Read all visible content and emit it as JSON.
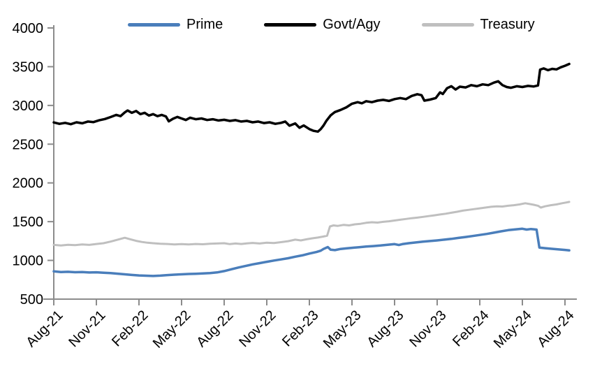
{
  "chart_data": {
    "type": "line",
    "title": "",
    "xlabel": "",
    "ylabel": "",
    "grid": false,
    "legend_position": "top",
    "axis_color": "#8c8c8c",
    "tick_label_color": "#000000",
    "ylim": [
      500,
      4000
    ],
    "y_ticks": [
      500,
      1000,
      1500,
      2000,
      2500,
      3000,
      3500,
      4000
    ],
    "x_tick_labels": [
      "Aug-21",
      "Nov-21",
      "Feb-22",
      "May-22",
      "Aug-22",
      "Nov-22",
      "Feb-23",
      "May-23",
      "Aug-23",
      "Nov-23",
      "Feb-24",
      "May-24",
      "Aug-24"
    ],
    "x_months_per_tick": 3,
    "x_span_months": 36.3,
    "series": [
      {
        "name": "Prime",
        "color": "#4a7ebb",
        "width": 3.5,
        "points": [
          [
            0,
            858
          ],
          [
            0.5,
            850
          ],
          [
            1,
            853
          ],
          [
            1.5,
            847
          ],
          [
            2,
            850
          ],
          [
            2.5,
            844
          ],
          [
            3,
            846
          ],
          [
            3.5,
            840
          ],
          [
            4,
            836
          ],
          [
            4.5,
            828
          ],
          [
            5,
            820
          ],
          [
            5.5,
            812
          ],
          [
            6,
            806
          ],
          [
            6.5,
            802
          ],
          [
            7,
            799
          ],
          [
            7.5,
            803
          ],
          [
            8,
            810
          ],
          [
            8.5,
            816
          ],
          [
            9,
            820
          ],
          [
            9.5,
            825
          ],
          [
            10,
            827
          ],
          [
            10.5,
            831
          ],
          [
            11,
            836
          ],
          [
            11.5,
            845
          ],
          [
            12,
            862
          ],
          [
            12.5,
            885
          ],
          [
            13,
            908
          ],
          [
            13.5,
            928
          ],
          [
            14,
            948
          ],
          [
            14.5,
            965
          ],
          [
            15,
            982
          ],
          [
            15.5,
            998
          ],
          [
            16,
            1012
          ],
          [
            16.5,
            1028
          ],
          [
            17,
            1048
          ],
          [
            17.5,
            1065
          ],
          [
            18,
            1088
          ],
          [
            18.5,
            1108
          ],
          [
            18.8,
            1125
          ],
          [
            19,
            1148
          ],
          [
            19.3,
            1172
          ],
          [
            19.5,
            1138
          ],
          [
            19.8,
            1132
          ],
          [
            20.2,
            1148
          ],
          [
            20.6,
            1155
          ],
          [
            21,
            1162
          ],
          [
            21.5,
            1170
          ],
          [
            22,
            1178
          ],
          [
            22.5,
            1185
          ],
          [
            23,
            1192
          ],
          [
            23.5,
            1202
          ],
          [
            24,
            1210
          ],
          [
            24.3,
            1198
          ],
          [
            24.6,
            1212
          ],
          [
            25,
            1222
          ],
          [
            25.5,
            1232
          ],
          [
            26,
            1242
          ],
          [
            26.5,
            1250
          ],
          [
            27,
            1258
          ],
          [
            27.5,
            1268
          ],
          [
            28,
            1278
          ],
          [
            28.5,
            1290
          ],
          [
            29,
            1302
          ],
          [
            29.5,
            1315
          ],
          [
            30,
            1328
          ],
          [
            30.5,
            1342
          ],
          [
            31,
            1358
          ],
          [
            31.5,
            1375
          ],
          [
            32,
            1390
          ],
          [
            32.5,
            1400
          ],
          [
            33,
            1408
          ],
          [
            33.3,
            1398
          ],
          [
            33.6,
            1405
          ],
          [
            34,
            1398
          ],
          [
            34.2,
            1165
          ],
          [
            34.6,
            1158
          ],
          [
            35,
            1150
          ],
          [
            35.5,
            1142
          ],
          [
            36,
            1135
          ],
          [
            36.3,
            1130
          ]
        ]
      },
      {
        "name": "Govt/Agy",
        "color": "#000000",
        "width": 3.5,
        "points": [
          [
            0,
            2780
          ],
          [
            0.4,
            2762
          ],
          [
            0.8,
            2775
          ],
          [
            1.2,
            2758
          ],
          [
            1.6,
            2782
          ],
          [
            2,
            2770
          ],
          [
            2.4,
            2792
          ],
          [
            2.8,
            2785
          ],
          [
            3.2,
            2808
          ],
          [
            3.6,
            2825
          ],
          [
            4,
            2850
          ],
          [
            4.4,
            2878
          ],
          [
            4.7,
            2862
          ],
          [
            5,
            2910
          ],
          [
            5.2,
            2935
          ],
          [
            5.5,
            2905
          ],
          [
            5.8,
            2928
          ],
          [
            6.1,
            2888
          ],
          [
            6.4,
            2905
          ],
          [
            6.7,
            2870
          ],
          [
            7,
            2888
          ],
          [
            7.3,
            2862
          ],
          [
            7.6,
            2878
          ],
          [
            7.9,
            2858
          ],
          [
            8.1,
            2795
          ],
          [
            8.4,
            2828
          ],
          [
            8.7,
            2852
          ],
          [
            9,
            2832
          ],
          [
            9.3,
            2812
          ],
          [
            9.6,
            2842
          ],
          [
            10,
            2822
          ],
          [
            10.4,
            2832
          ],
          [
            10.8,
            2812
          ],
          [
            11.2,
            2822
          ],
          [
            11.6,
            2806
          ],
          [
            12,
            2815
          ],
          [
            12.4,
            2800
          ],
          [
            12.8,
            2810
          ],
          [
            13.2,
            2792
          ],
          [
            13.6,
            2800
          ],
          [
            14,
            2782
          ],
          [
            14.4,
            2792
          ],
          [
            14.8,
            2772
          ],
          [
            15.2,
            2782
          ],
          [
            15.6,
            2762
          ],
          [
            16,
            2775
          ],
          [
            16.3,
            2792
          ],
          [
            16.6,
            2738
          ],
          [
            17,
            2768
          ],
          [
            17.3,
            2712
          ],
          [
            17.6,
            2742
          ],
          [
            18,
            2695
          ],
          [
            18.3,
            2672
          ],
          [
            18.6,
            2662
          ],
          [
            18.8,
            2695
          ],
          [
            19,
            2742
          ],
          [
            19.2,
            2802
          ],
          [
            19.5,
            2872
          ],
          [
            19.8,
            2915
          ],
          [
            20.2,
            2942
          ],
          [
            20.6,
            2975
          ],
          [
            21,
            3022
          ],
          [
            21.4,
            3042
          ],
          [
            21.7,
            3028
          ],
          [
            22,
            3055
          ],
          [
            22.4,
            3042
          ],
          [
            22.8,
            3062
          ],
          [
            23.2,
            3072
          ],
          [
            23.6,
            3058
          ],
          [
            24,
            3082
          ],
          [
            24.4,
            3095
          ],
          [
            24.8,
            3082
          ],
          [
            25.2,
            3122
          ],
          [
            25.6,
            3145
          ],
          [
            25.9,
            3132
          ],
          [
            26.1,
            3062
          ],
          [
            26.5,
            3075
          ],
          [
            26.9,
            3095
          ],
          [
            27.2,
            3168
          ],
          [
            27.4,
            3148
          ],
          [
            27.7,
            3222
          ],
          [
            28,
            3248
          ],
          [
            28.3,
            3205
          ],
          [
            28.6,
            3242
          ],
          [
            29,
            3232
          ],
          [
            29.4,
            3262
          ],
          [
            29.8,
            3248
          ],
          [
            30.2,
            3272
          ],
          [
            30.6,
            3262
          ],
          [
            31,
            3295
          ],
          [
            31.3,
            3312
          ],
          [
            31.6,
            3262
          ],
          [
            31.9,
            3238
          ],
          [
            32.2,
            3228
          ],
          [
            32.6,
            3248
          ],
          [
            33,
            3238
          ],
          [
            33.4,
            3252
          ],
          [
            33.8,
            3245
          ],
          [
            34.1,
            3258
          ],
          [
            34.25,
            3462
          ],
          [
            34.5,
            3478
          ],
          [
            34.8,
            3455
          ],
          [
            35.1,
            3472
          ],
          [
            35.4,
            3465
          ],
          [
            35.7,
            3492
          ],
          [
            36,
            3512
          ],
          [
            36.3,
            3535
          ]
        ]
      },
      {
        "name": "Treasury",
        "color": "#bfbfbf",
        "width": 3,
        "points": [
          [
            0,
            1200
          ],
          [
            0.5,
            1192
          ],
          [
            1,
            1202
          ],
          [
            1.5,
            1196
          ],
          [
            2,
            1205
          ],
          [
            2.5,
            1200
          ],
          [
            3,
            1212
          ],
          [
            3.5,
            1222
          ],
          [
            4,
            1242
          ],
          [
            4.5,
            1268
          ],
          [
            5,
            1292
          ],
          [
            5.4,
            1272
          ],
          [
            5.8,
            1252
          ],
          [
            6.2,
            1238
          ],
          [
            6.6,
            1228
          ],
          [
            7,
            1222
          ],
          [
            7.5,
            1215
          ],
          [
            8,
            1212
          ],
          [
            8.5,
            1206
          ],
          [
            9,
            1210
          ],
          [
            9.5,
            1205
          ],
          [
            10,
            1212
          ],
          [
            10.5,
            1208
          ],
          [
            11,
            1214
          ],
          [
            11.5,
            1218
          ],
          [
            12,
            1222
          ],
          [
            12.4,
            1210
          ],
          [
            12.8,
            1218
          ],
          [
            13.2,
            1212
          ],
          [
            13.6,
            1220
          ],
          [
            14,
            1225
          ],
          [
            14.5,
            1218
          ],
          [
            15,
            1228
          ],
          [
            15.5,
            1224
          ],
          [
            16,
            1235
          ],
          [
            16.5,
            1248
          ],
          [
            17,
            1268
          ],
          [
            17.4,
            1258
          ],
          [
            17.8,
            1272
          ],
          [
            18.2,
            1285
          ],
          [
            18.6,
            1295
          ],
          [
            19,
            1308
          ],
          [
            19.25,
            1318
          ],
          [
            19.45,
            1438
          ],
          [
            19.7,
            1452
          ],
          [
            20,
            1445
          ],
          [
            20.4,
            1458
          ],
          [
            20.8,
            1452
          ],
          [
            21.2,
            1465
          ],
          [
            21.6,
            1472
          ],
          [
            22,
            1485
          ],
          [
            22.4,
            1492
          ],
          [
            22.8,
            1488
          ],
          [
            23.2,
            1498
          ],
          [
            23.6,
            1505
          ],
          [
            24,
            1515
          ],
          [
            24.4,
            1525
          ],
          [
            24.8,
            1535
          ],
          [
            25.2,
            1545
          ],
          [
            25.6,
            1552
          ],
          [
            26,
            1562
          ],
          [
            26.4,
            1572
          ],
          [
            26.8,
            1582
          ],
          [
            27.2,
            1592
          ],
          [
            27.6,
            1602
          ],
          [
            28,
            1615
          ],
          [
            28.4,
            1628
          ],
          [
            28.8,
            1642
          ],
          [
            29.2,
            1652
          ],
          [
            29.6,
            1662
          ],
          [
            30,
            1672
          ],
          [
            30.4,
            1682
          ],
          [
            30.8,
            1692
          ],
          [
            31.2,
            1698
          ],
          [
            31.6,
            1695
          ],
          [
            32,
            1705
          ],
          [
            32.4,
            1712
          ],
          [
            32.8,
            1722
          ],
          [
            33.2,
            1738
          ],
          [
            33.5,
            1728
          ],
          [
            33.8,
            1718
          ],
          [
            34.1,
            1705
          ],
          [
            34.3,
            1682
          ],
          [
            34.6,
            1698
          ],
          [
            35,
            1712
          ],
          [
            35.4,
            1722
          ],
          [
            35.8,
            1738
          ],
          [
            36.1,
            1748
          ],
          [
            36.3,
            1755
          ]
        ]
      }
    ]
  }
}
